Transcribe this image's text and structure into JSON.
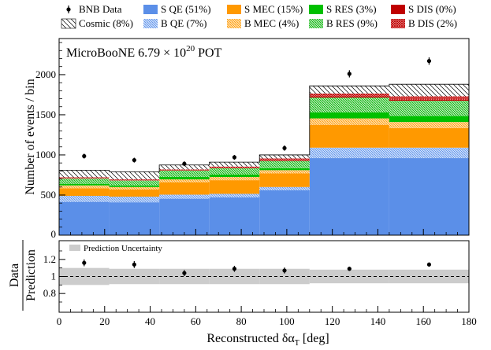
{
  "chart_data": {
    "type": "bar",
    "stacked": true,
    "annotation": "MicroBooNE 6.79 × 10",
    "annotation_exp": "20",
    "annotation_suffix": " POT",
    "xlabel": "Reconstructed δα",
    "xlabel_sub": "T",
    "xlabel_suffix": " [deg]",
    "ylabel": "Number of events / bin",
    "ratio_ylabel_top": "Data",
    "ratio_ylabel_bottom": "Prediction",
    "xlim": [
      0,
      180
    ],
    "ylim": [
      0,
      2450
    ],
    "ratio_ylim": [
      0.58,
      1.42
    ],
    "x_ticks": [
      0,
      20,
      40,
      60,
      80,
      100,
      120,
      140,
      160,
      180
    ],
    "y_ticks": [
      500,
      1000,
      1500,
      2000
    ],
    "y_tick_labels": [
      "500",
      "1000",
      "1500",
      "2000"
    ],
    "y_zero_label": "0",
    "ratio_ticks": [
      0.8,
      1,
      1.2
    ],
    "ratio_tick_labels": [
      "0.8",
      "1",
      "1.2"
    ],
    "bin_edges": [
      0,
      22,
      44,
      66,
      88,
      110,
      145,
      180
    ],
    "series": [
      {
        "name": "S QE (51%)",
        "key": "sqe",
        "color": "#5b8fe8",
        "values": [
          415,
          410,
          455,
          470,
          560,
          960,
          960
        ]
      },
      {
        "name": "B QE (7%)",
        "key": "bqe",
        "color": "#5b8fe8",
        "pattern": "hatch-blue",
        "values": [
          75,
          70,
          50,
          45,
          40,
          130,
          130
        ]
      },
      {
        "name": "S MEC (15%)",
        "key": "smec",
        "color": "#ff9900",
        "values": [
          95,
          90,
          155,
          170,
          170,
          285,
          245
        ]
      },
      {
        "name": "B MEC (4%)",
        "key": "bmec",
        "color": "#ff9900",
        "pattern": "hatch-orange",
        "values": [
          35,
          30,
          35,
          40,
          40,
          80,
          75
        ]
      },
      {
        "name": "S RES (3%)",
        "key": "sres",
        "color": "#00c000",
        "values": [
          20,
          20,
          30,
          30,
          25,
          75,
          75
        ]
      },
      {
        "name": "B RES (9%)",
        "key": "bres",
        "color": "#00c000",
        "pattern": "hatch-green",
        "values": [
          65,
          60,
          80,
          80,
          90,
          185,
          190
        ]
      },
      {
        "name": "S DIS (0%)",
        "key": "sdis",
        "color": "#c00000",
        "values": [
          3,
          3,
          3,
          3,
          5,
          10,
          12
        ]
      },
      {
        "name": "B DIS (2%)",
        "key": "bdis",
        "color": "#c00000",
        "pattern": "hatch-red",
        "values": [
          12,
          12,
          12,
          17,
          25,
          40,
          43
        ]
      },
      {
        "name": "Cosmic (8%)",
        "key": "cosmic",
        "color": "#000000",
        "pattern": "hatch-cosmic",
        "values": [
          90,
          95,
          55,
          55,
          45,
          95,
          150
        ]
      }
    ],
    "data_series": {
      "name": "BNB Data",
      "x": [
        11,
        33,
        55,
        77,
        99,
        127.5,
        162.5
      ],
      "y": [
        985,
        935,
        890,
        970,
        1085,
        2010,
        2170
      ],
      "err": [
        30,
        30,
        30,
        30,
        33,
        45,
        46
      ]
    },
    "ratio": {
      "legend": "Prediction Uncertainty",
      "x": [
        11,
        33,
        55,
        77,
        99,
        127.5,
        162.5
      ],
      "y": [
        1.16,
        1.14,
        1.04,
        1.09,
        1.07,
        1.09,
        1.14
      ],
      "err": [
        0.04,
        0.04,
        0.035,
        0.035,
        0.035,
        0.025,
        0.025
      ],
      "uncertainty": [
        0.1,
        0.09,
        0.09,
        0.09,
        0.09,
        0.08,
        0.08
      ],
      "reference": 1
    },
    "legend_order": [
      "data",
      "sqe",
      "smec",
      "sres",
      "sdis",
      "cosmic",
      "bqe",
      "bmec",
      "bres",
      "bdis"
    ]
  }
}
